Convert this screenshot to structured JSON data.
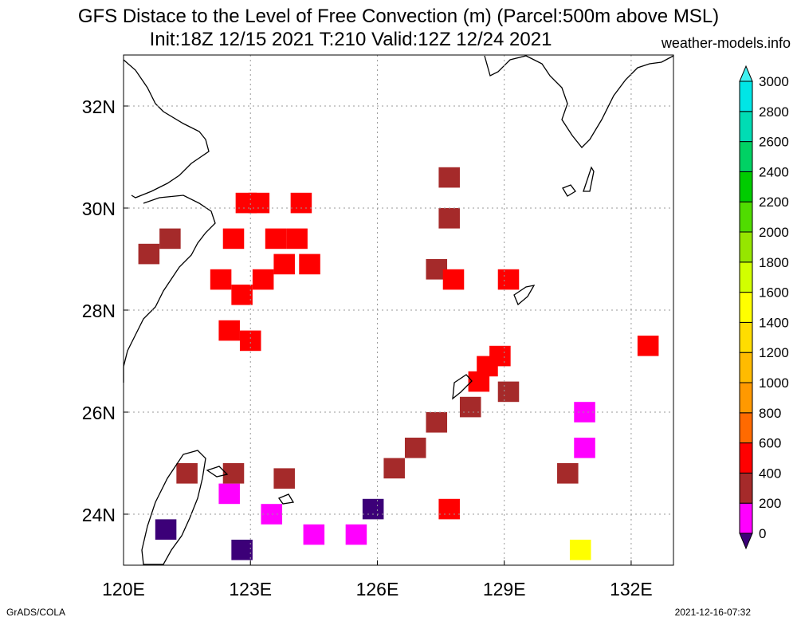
{
  "header": {
    "title_line1": "GFS Distace to the Level of Free Convection (m) (Parcel:500m above MSL)",
    "title_line2": "Init:18Z 12/15 2021 T:210 Valid:12Z 12/24 2021",
    "site": "weather-models.info"
  },
  "footer": {
    "left": "GrADS/COLA",
    "right": "2021-12-16-07:32"
  },
  "chart_data": {
    "type": "heatmap",
    "title": "GFS Distace to the Level of Free Convection (m) (Parcel:500m above MSL)",
    "subtitle": "Init:18Z 12/15 2021 T:210 Valid:12Z 12/24 2021",
    "xlim": [
      120,
      133
    ],
    "ylim": [
      23,
      33
    ],
    "x_ticks": [
      120,
      123,
      126,
      129,
      132
    ],
    "x_tick_labels": [
      "120E",
      "123E",
      "126E",
      "129E",
      "132E"
    ],
    "y_ticks": [
      24,
      26,
      28,
      30,
      32
    ],
    "y_tick_labels": [
      "24N",
      "26N",
      "28N",
      "30N",
      "32N"
    ],
    "grid": true,
    "colorbar": {
      "levels": [
        0,
        200,
        400,
        600,
        800,
        1000,
        1200,
        1400,
        1600,
        1800,
        2000,
        2200,
        2400,
        2600,
        2800,
        3000
      ],
      "labels": [
        "0",
        "200",
        "400",
        "600",
        "800",
        "1000",
        "1200",
        "1400",
        "1600",
        "1800",
        "2000",
        "2200",
        "2400",
        "2600",
        "2800",
        "3000"
      ],
      "colors": [
        "#3c0078",
        "#ff00ff",
        "#a52a2a",
        "#ff0000",
        "#ff6a00",
        "#ff9900",
        "#ffbb00",
        "#ffdd00",
        "#ffff00",
        "#d2ff00",
        "#96e600",
        "#50dc00",
        "#00cc00",
        "#00d264",
        "#00dcb4",
        "#00e6e6",
        "#40f0f0"
      ],
      "position": "right"
    },
    "cells": [
      {
        "lon": 122.9,
        "lat": 30.1,
        "bin": "600"
      },
      {
        "lon": 123.2,
        "lat": 30.1,
        "bin": "600"
      },
      {
        "lon": 124.2,
        "lat": 30.1,
        "bin": "600"
      },
      {
        "lon": 121.1,
        "lat": 29.4,
        "bin": "400"
      },
      {
        "lon": 120.6,
        "lat": 29.1,
        "bin": "400"
      },
      {
        "lon": 122.6,
        "lat": 29.4,
        "bin": "600"
      },
      {
        "lon": 123.6,
        "lat": 29.4,
        "bin": "600"
      },
      {
        "lon": 124.1,
        "lat": 29.4,
        "bin": "600"
      },
      {
        "lon": 122.3,
        "lat": 28.6,
        "bin": "600"
      },
      {
        "lon": 122.8,
        "lat": 28.3,
        "bin": "600"
      },
      {
        "lon": 123.3,
        "lat": 28.6,
        "bin": "600"
      },
      {
        "lon": 123.8,
        "lat": 28.9,
        "bin": "600"
      },
      {
        "lon": 124.4,
        "lat": 28.9,
        "bin": "600"
      },
      {
        "lon": 122.5,
        "lat": 27.6,
        "bin": "600"
      },
      {
        "lon": 123.0,
        "lat": 27.4,
        "bin": "600"
      },
      {
        "lon": 127.7,
        "lat": 30.6,
        "bin": "400"
      },
      {
        "lon": 127.7,
        "lat": 29.8,
        "bin": "400"
      },
      {
        "lon": 127.4,
        "lat": 28.8,
        "bin": "400"
      },
      {
        "lon": 127.8,
        "lat": 28.6,
        "bin": "600"
      },
      {
        "lon": 129.1,
        "lat": 28.6,
        "bin": "600"
      },
      {
        "lon": 128.9,
        "lat": 27.1,
        "bin": "600"
      },
      {
        "lon": 128.6,
        "lat": 26.9,
        "bin": "600"
      },
      {
        "lon": 128.4,
        "lat": 26.6,
        "bin": "600"
      },
      {
        "lon": 129.1,
        "lat": 26.4,
        "bin": "400"
      },
      {
        "lon": 128.2,
        "lat": 26.1,
        "bin": "400"
      },
      {
        "lon": 127.4,
        "lat": 25.8,
        "bin": "400"
      },
      {
        "lon": 126.9,
        "lat": 25.3,
        "bin": "400"
      },
      {
        "lon": 126.4,
        "lat": 24.9,
        "bin": "400"
      },
      {
        "lon": 132.4,
        "lat": 27.3,
        "bin": "600"
      },
      {
        "lon": 130.9,
        "lat": 26.0,
        "bin": "200"
      },
      {
        "lon": 130.9,
        "lat": 25.3,
        "bin": "200"
      },
      {
        "lon": 130.5,
        "lat": 24.8,
        "bin": "400"
      },
      {
        "lon": 127.7,
        "lat": 24.1,
        "bin": "600"
      },
      {
        "lon": 130.8,
        "lat": 23.3,
        "bin": "1600"
      },
      {
        "lon": 122.5,
        "lat": 24.4,
        "bin": "200"
      },
      {
        "lon": 123.5,
        "lat": 24.0,
        "bin": "200"
      },
      {
        "lon": 124.5,
        "lat": 23.6,
        "bin": "200"
      },
      {
        "lon": 125.5,
        "lat": 23.6,
        "bin": "200"
      },
      {
        "lon": 121.5,
        "lat": 24.8,
        "bin": "400"
      },
      {
        "lon": 122.6,
        "lat": 24.8,
        "bin": "400"
      },
      {
        "lon": 123.8,
        "lat": 24.7,
        "bin": "400"
      },
      {
        "lon": 122.8,
        "lat": 23.3,
        "bin": "0"
      },
      {
        "lon": 121.0,
        "lat": 23.7,
        "bin": "0"
      },
      {
        "lon": 125.9,
        "lat": 24.1,
        "bin": "0"
      }
    ]
  }
}
